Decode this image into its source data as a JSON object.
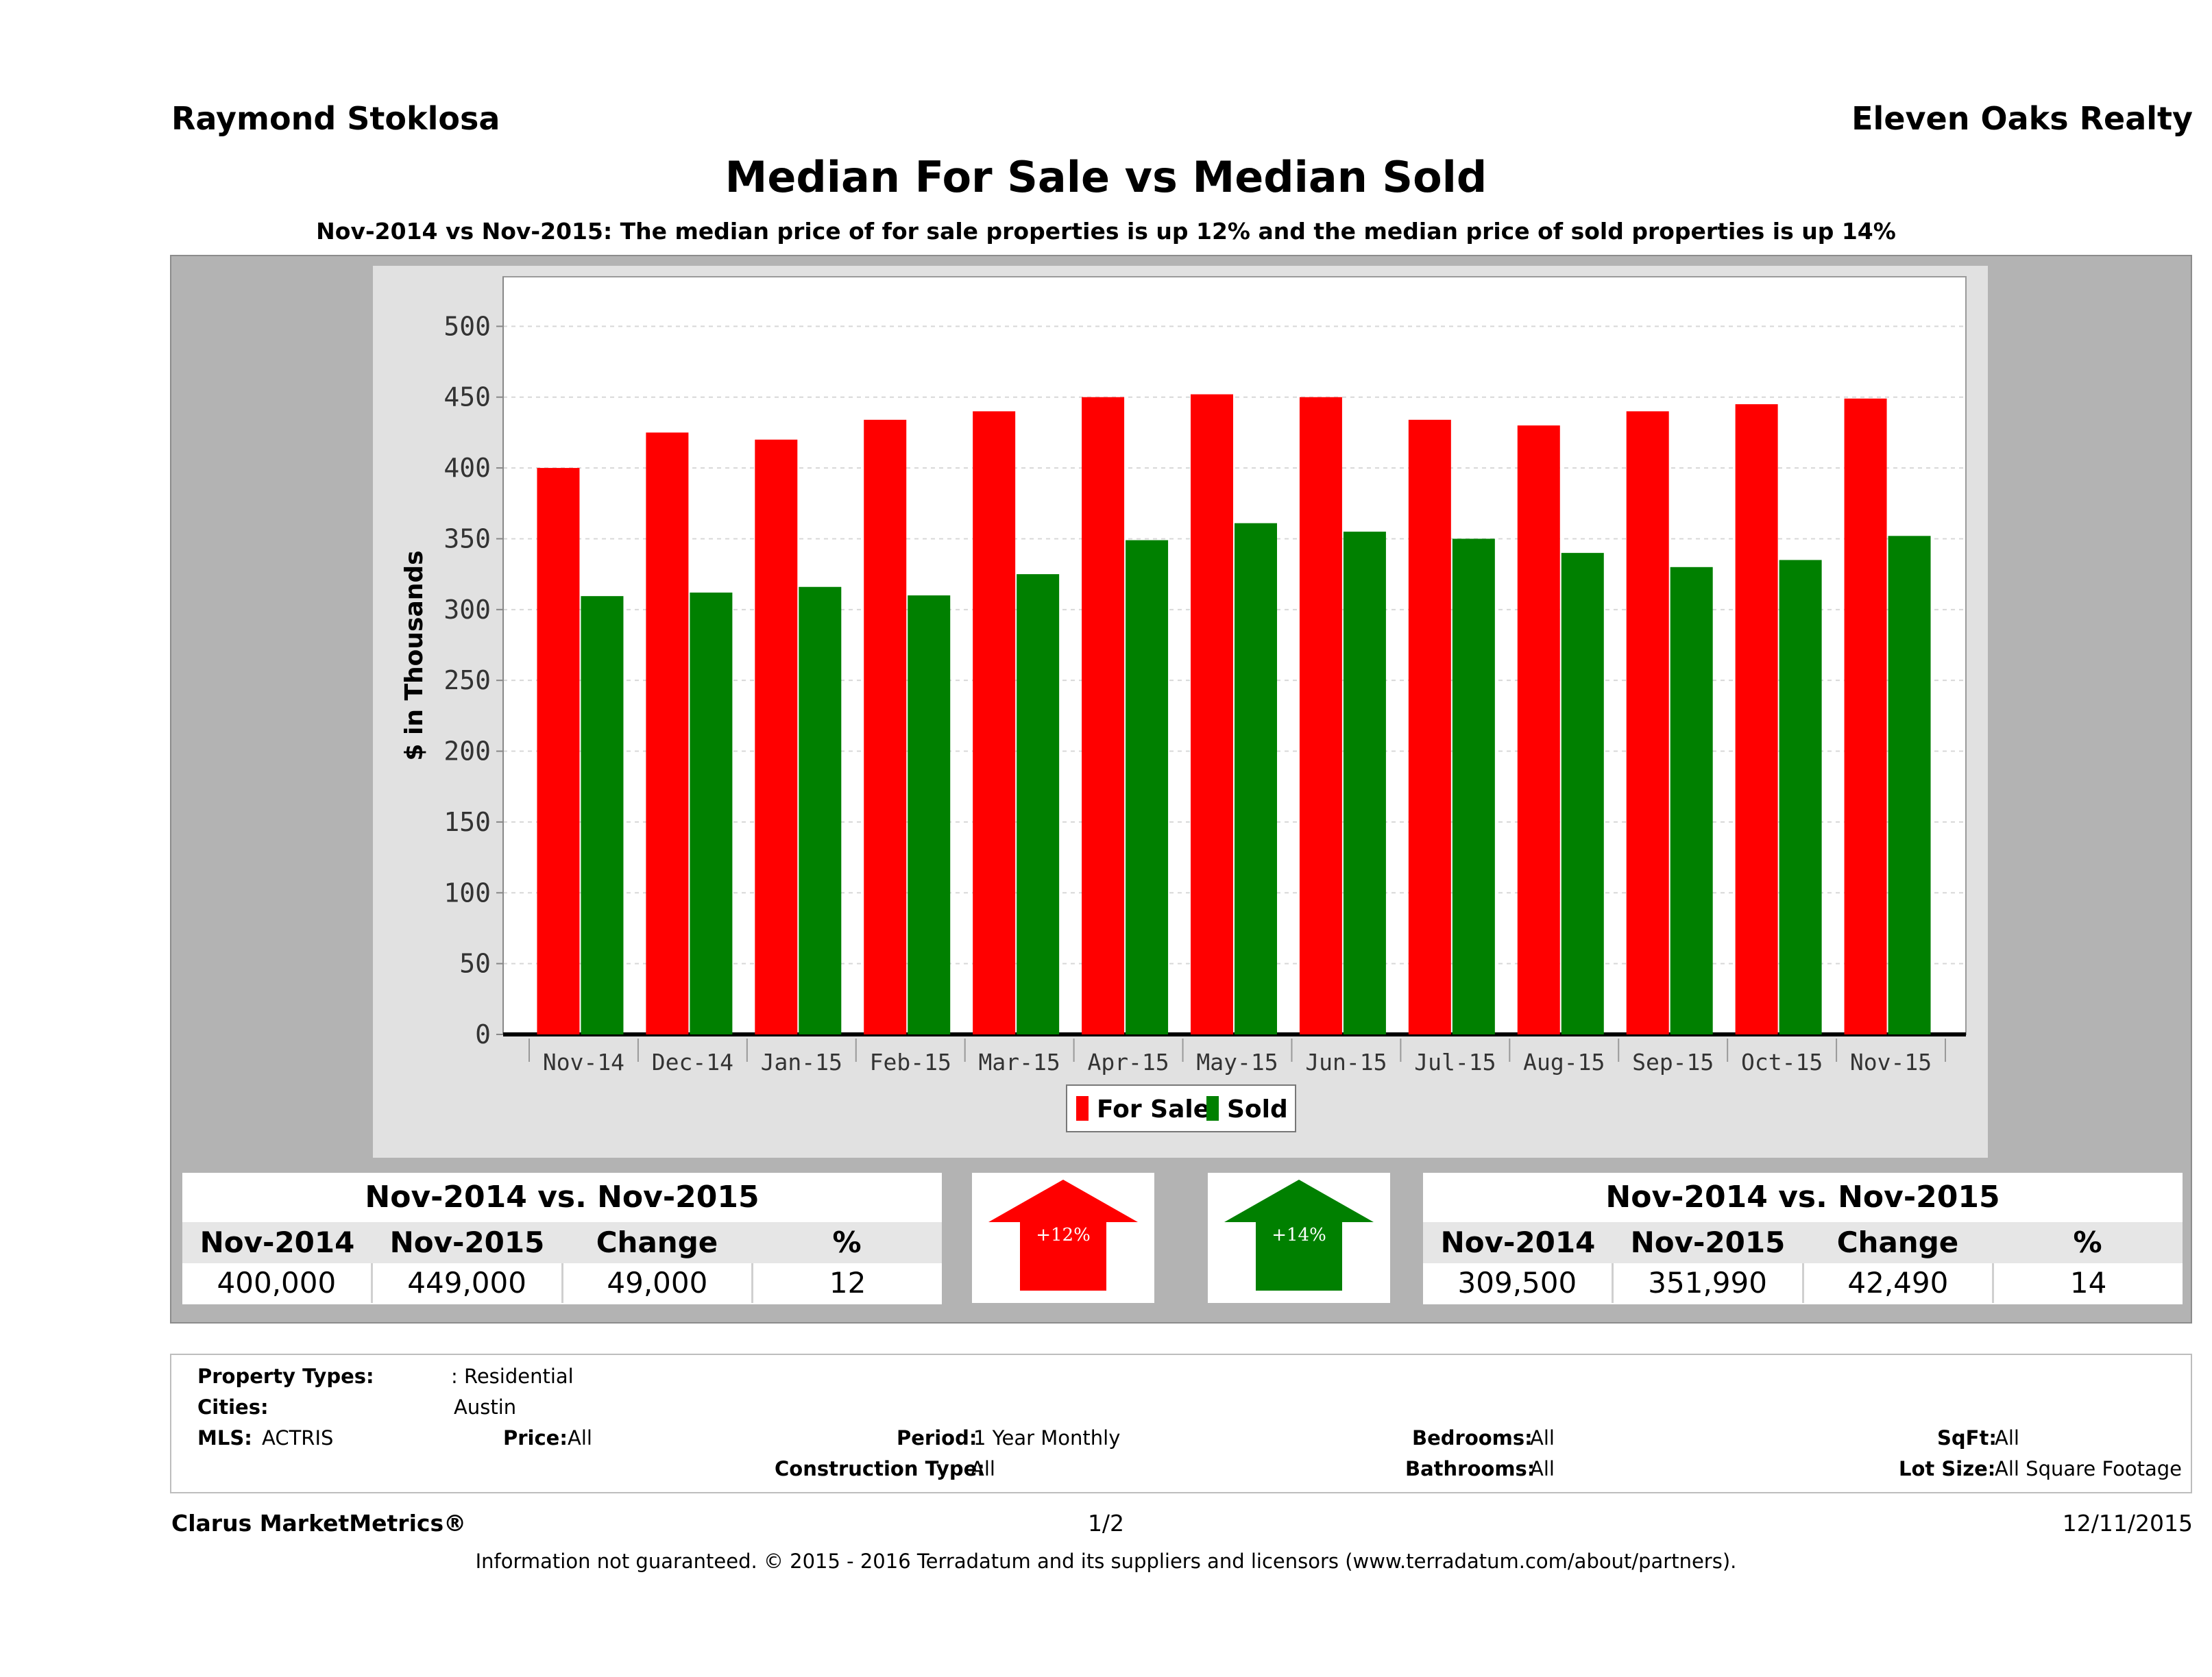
{
  "header": {
    "left": "Raymond Stoklosa",
    "right": "Eleven Oaks Realty",
    "title": "Median For Sale vs Median Sold",
    "subtitle": "Nov-2014 vs Nov-2015: The median price of for sale properties is up 12% and the median price of sold properties is up 14%"
  },
  "chart_data": {
    "type": "bar",
    "title": "Median For Sale vs Median Sold",
    "ylabel": "$ in Thousands",
    "xlabel": "",
    "ylim": [
      0,
      535
    ],
    "yticks": [
      0,
      50,
      100,
      150,
      200,
      250,
      300,
      350,
      400,
      450,
      500
    ],
    "grid": true,
    "legend": "bottom-center",
    "categories": [
      "Nov-14",
      "Dec-14",
      "Jan-15",
      "Feb-15",
      "Mar-15",
      "Apr-15",
      "May-15",
      "Jun-15",
      "Jul-15",
      "Aug-15",
      "Sep-15",
      "Oct-15",
      "Nov-15"
    ],
    "series": [
      {
        "name": "For Sale",
        "color": "#ff0000",
        "values": [
          400,
          425,
          420,
          434,
          440,
          450,
          452,
          450,
          434,
          430,
          440,
          445,
          449
        ]
      },
      {
        "name": "Sold",
        "color": "#008000",
        "values": [
          309.5,
          312,
          316,
          310,
          325,
          349,
          361,
          355,
          350,
          340,
          330,
          335,
          352
        ]
      }
    ]
  },
  "for_sale_stats": {
    "title": "Nov-2014 vs. Nov-2015",
    "headers": [
      "Nov-2014",
      "Nov-2015",
      "Change",
      "%"
    ],
    "values": [
      "400,000",
      "449,000",
      "49,000",
      "12"
    ],
    "arrow_label": "+12%",
    "arrow_color": "#ff0000"
  },
  "sold_stats": {
    "title": "Nov-2014 vs. Nov-2015",
    "headers": [
      "Nov-2014",
      "Nov-2015",
      "Change",
      "%"
    ],
    "values": [
      "309,500",
      "351,990",
      "42,490",
      "14"
    ],
    "arrow_label": "+14%",
    "arrow_color": "#008000"
  },
  "criteria": {
    "property_types_label": "Property Types:",
    "property_types_value": ": Residential",
    "cities_label": "Cities:",
    "cities_value": "Austin",
    "mls_label": "MLS:",
    "mls_value": "ACTRIS",
    "price_label": "Price:",
    "price_value": "All",
    "period_label": "Period:",
    "period_value": "1 Year Monthly",
    "bedrooms_label": "Bedrooms:",
    "bedrooms_value": "All",
    "sqft_label": "SqFt:",
    "sqft_value": "All",
    "construction_label": "Construction Type:",
    "construction_value": "All",
    "bathrooms_label": "Bathrooms:",
    "bathrooms_value": "All",
    "lot_label": "Lot Size:",
    "lot_value": "All Square Footage"
  },
  "footer": {
    "brand": "Clarus MarketMetrics®",
    "page": "1/2",
    "date": "12/11/2015",
    "disclaimer": "Information not guaranteed. © 2015 - 2016 Terradatum and its suppliers and licensors (www.terradatum.com/about/partners)."
  }
}
